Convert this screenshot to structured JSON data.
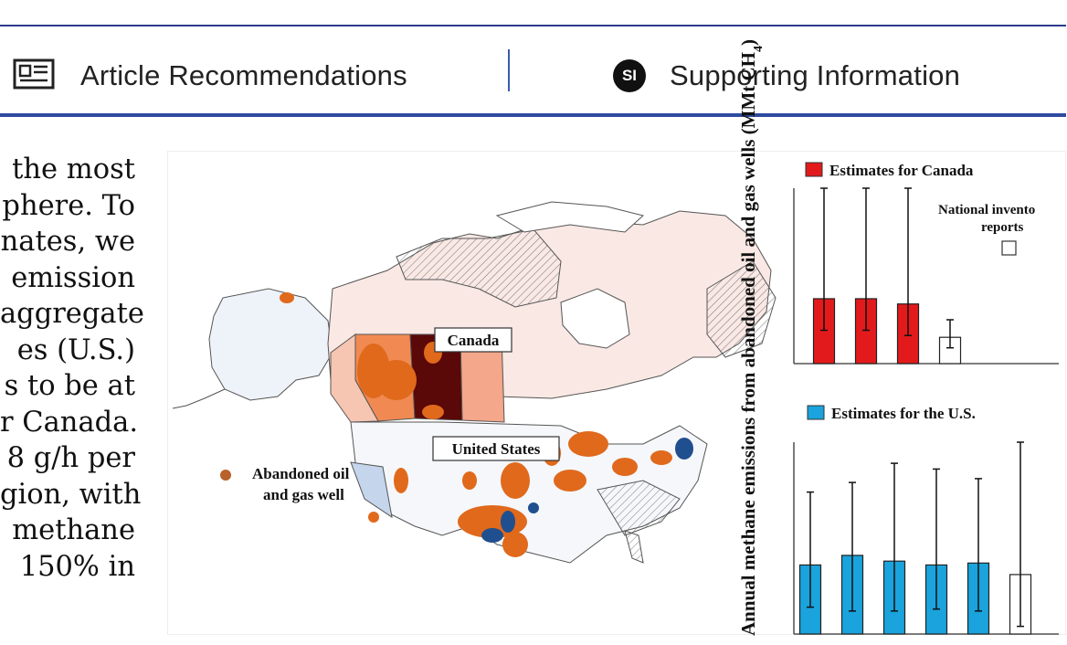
{
  "tabs": [
    {
      "label": "Article Recommendations",
      "icon": "article-icon"
    },
    {
      "label": "Supporting Information",
      "icon": "si-badge-icon",
      "badge": "SI"
    }
  ],
  "abstract_lines": [
    "the most",
    "phere. To",
    "nates, we",
    "emission",
    "aggregate",
    "es (U.S.)",
    "s to be at",
    "r Canada.",
    "8 g/h per",
    "gion, with",
    "methane",
    "150% in"
  ],
  "map": {
    "label_canada": "Canada",
    "label_us": "United States",
    "legend_text_line1": "Abandoned oil",
    "legend_text_line2": "and gas well",
    "colors": {
      "well": "#e0691c",
      "dark": "#5e0a0a",
      "shale": "#1f4f8f"
    }
  },
  "chart_data": [
    {
      "type": "bar",
      "title": "",
      "ylabel": "Annual methane emissions from abandoned oil and gas wells (MMt CH4)",
      "legend": "Estimates for Canada",
      "annotation_line1": "National invento",
      "annotation_line2": "reports",
      "series": [
        {
          "name": "Estimates for Canada",
          "values": [
            0.37,
            0.37,
            0.34
          ],
          "err_low": [
            0.19,
            0.19,
            0.16
          ],
          "err_high": [
            1.0,
            1.0,
            1.0
          ],
          "color": "#e31a1c"
        },
        {
          "name": "National inventory reports",
          "values": [
            0.15
          ],
          "err_low": [
            0.09
          ],
          "err_high": [
            0.25
          ],
          "color": "#ffffff"
        }
      ]
    },
    {
      "type": "bar",
      "title": "",
      "ylabel": "Annual methane emissions from abandoned oil and gas wells (MMt CH4)",
      "legend": "Estimates for the U.S.",
      "series": [
        {
          "name": "Estimates for the U.S.",
          "values": [
            0.36,
            0.41,
            0.38,
            0.36,
            0.37
          ],
          "err_low": [
            0.14,
            0.12,
            0.12,
            0.13,
            0.12
          ],
          "err_high": [
            0.74,
            0.79,
            0.89,
            0.86,
            0.81
          ],
          "color": "#1aa3dc"
        },
        {
          "name": "National inventory reports",
          "values": [
            0.31
          ],
          "err_low": [
            0.04
          ],
          "err_high": [
            1.0
          ],
          "color": "#ffffff"
        }
      ]
    }
  ]
}
